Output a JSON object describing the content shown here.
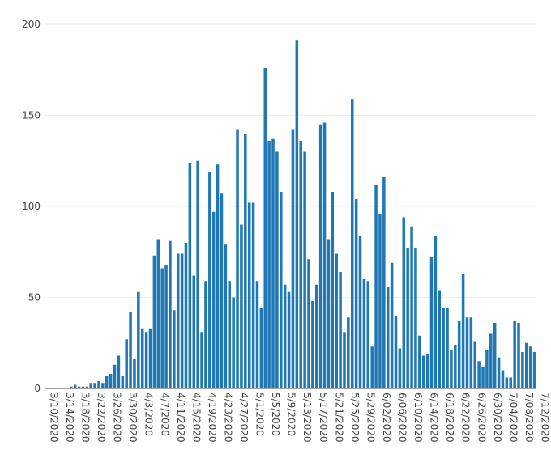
{
  "chart_data": {
    "type": "bar",
    "title": "",
    "xlabel": "",
    "ylabel": "",
    "ylim": [
      0,
      200
    ],
    "yticks": [
      0,
      50,
      100,
      150,
      200
    ],
    "grid": true,
    "bar_color": "#1f77b4",
    "grid_color": "#eeeeee",
    "x_tick_labels": [
      "3/10/2020",
      "3/14/2020",
      "3/18/2020",
      "3/22/2020",
      "3/26/2020",
      "3/30/2020",
      "4/3/2020",
      "4/7/2020",
      "4/11/2020",
      "4/15/2020",
      "4/19/2020",
      "4/23/2020",
      "4/27/2020",
      "5/1/2020",
      "5/5/2020",
      "5/9/2020",
      "5/13/2020",
      "5/17/2020",
      "5/21/2020",
      "5/25/2020",
      "5/29/2020",
      "6/02/2020",
      "6/06/2020",
      "6/10/2020",
      "6/14/2020",
      "6/18/2020",
      "6/22/2020",
      "6/26/2020",
      "6/30/2020",
      "7/04/2020",
      "7/08/2020",
      "7/12/2020"
    ],
    "values": [
      0,
      0,
      0,
      0,
      0,
      0,
      1,
      2,
      1,
      1,
      1,
      3,
      3,
      4,
      3,
      7,
      8,
      13,
      18,
      7,
      27,
      42,
      16,
      53,
      33,
      31,
      33,
      73,
      82,
      66,
      68,
      81,
      43,
      74,
      74,
      80,
      124,
      62,
      125,
      31,
      59,
      119,
      97,
      123,
      107,
      79,
      59,
      50,
      142,
      90,
      140,
      102,
      102,
      59,
      44,
      176,
      136,
      137,
      130,
      108,
      57,
      53,
      142,
      191,
      136,
      130,
      71,
      48,
      57,
      145,
      146,
      82,
      108,
      74,
      64,
      31,
      39,
      159,
      104,
      84,
      60,
      59,
      23,
      112,
      96,
      116,
      56,
      69,
      40,
      22,
      94,
      77,
      89,
      77,
      29,
      18,
      19,
      72,
      84,
      54,
      44,
      44,
      21,
      24,
      37,
      63,
      39,
      39,
      26,
      15,
      12,
      21,
      30,
      36,
      17,
      10,
      6,
      6,
      37,
      36,
      20,
      25,
      23,
      20
    ]
  }
}
